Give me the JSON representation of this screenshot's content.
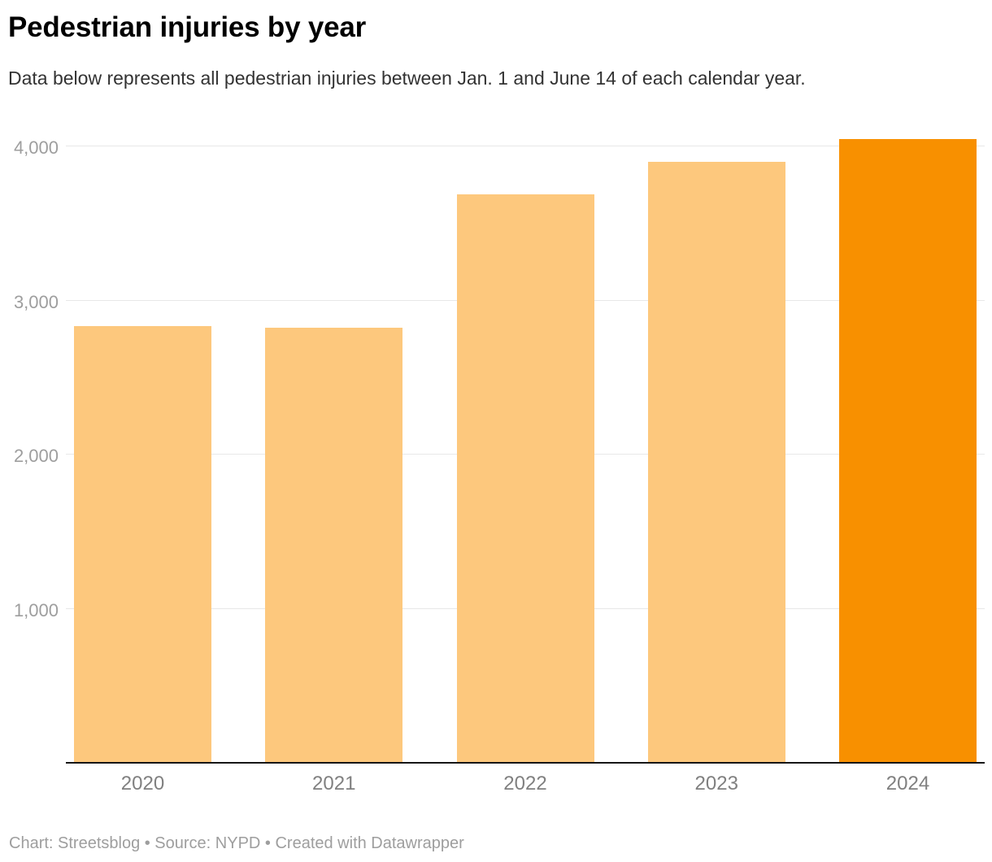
{
  "header": {
    "title": "Pedestrian injuries by year",
    "subtitle": "Data below represents all pedestrian injuries between Jan. 1 and June 14 of each calendar year."
  },
  "footer": {
    "text": "Chart: Streetsblog • Source: NYPD • Created with Datawrapper"
  },
  "colors": {
    "bar": "#FDC87D",
    "bar_highlight": "#F89000",
    "gridline": "#E8E8E8",
    "axis_line": "#161616",
    "title": "#000000",
    "subtitle": "#333333",
    "tick_label": "#9E9E9E",
    "year_label": "#808080",
    "footer_text": "#9E9E9E"
  },
  "chart_data": {
    "type": "bar",
    "title": "Pedestrian injuries by year",
    "subtitle": "Data below represents all pedestrian injuries between Jan. 1 and June 14 of each calendar year.",
    "categories": [
      "2020",
      "2021",
      "2022",
      "2023",
      "2024"
    ],
    "values": [
      2830,
      2820,
      3685,
      3895,
      4040
    ],
    "highlight_index": 4,
    "highlight_category": "2024",
    "xlabel": "",
    "ylabel": "",
    "ylim": [
      0,
      4200
    ],
    "yticks": [
      1000,
      2000,
      3000,
      4000
    ],
    "ytick_labels": [
      "1,000",
      "2,000",
      "3,000",
      "4,000"
    ],
    "grid": "horizontal",
    "legend": "none",
    "source_note": "Chart: Streetsblog • Source: NYPD • Created with Datawrapper"
  }
}
